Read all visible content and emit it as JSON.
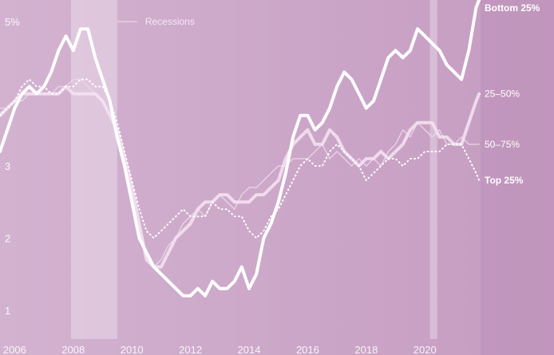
{
  "chart_data": {
    "type": "line",
    "title": "",
    "xlabel": "",
    "ylabel": "",
    "xlim": [
      2005.5,
      2021.9
    ],
    "ylim": [
      0.6,
      5.3
    ],
    "x_ticks": [
      {
        "value": 2006,
        "label": "2006"
      },
      {
        "value": 2008,
        "label": "2008"
      },
      {
        "value": 2010,
        "label": "2010"
      },
      {
        "value": 2012,
        "label": "2012"
      },
      {
        "value": 2014,
        "label": "2014"
      },
      {
        "value": 2016,
        "label": "2016"
      },
      {
        "value": 2018,
        "label": "2018"
      },
      {
        "value": 2020,
        "label": "2020"
      }
    ],
    "y_ticks": [
      {
        "value": 1,
        "label": "1"
      },
      {
        "value": 2,
        "label": "2"
      },
      {
        "value": 3,
        "label": "3"
      },
      {
        "value": 5,
        "label": "5%"
      }
    ],
    "grid": false,
    "recessions": {
      "label": "Recessions",
      "periods": [
        [
          2007.92,
          2009.5
        ],
        [
          2020.17,
          2020.42
        ]
      ]
    },
    "series": [
      {
        "name": "Bottom 25%",
        "x": [
          2005.5,
          2005.75,
          2006.0,
          2006.25,
          2006.5,
          2006.75,
          2007.0,
          2007.25,
          2007.5,
          2007.75,
          2008.0,
          2008.25,
          2008.5,
          2008.75,
          2009.0,
          2009.25,
          2009.5,
          2009.75,
          2010.0,
          2010.25,
          2010.5,
          2010.75,
          2011.0,
          2011.25,
          2011.5,
          2011.75,
          2012.0,
          2012.25,
          2012.5,
          2012.75,
          2013.0,
          2013.25,
          2013.5,
          2013.75,
          2014.0,
          2014.25,
          2014.5,
          2014.75,
          2015.0,
          2015.25,
          2015.5,
          2015.75,
          2016.0,
          2016.25,
          2016.5,
          2016.75,
          2017.0,
          2017.25,
          2017.5,
          2017.75,
          2018.0,
          2018.25,
          2018.5,
          2018.75,
          2019.0,
          2019.25,
          2019.5,
          2019.75,
          2020.0,
          2020.25,
          2020.5,
          2020.75,
          2021.0,
          2021.25,
          2021.5,
          2021.75,
          2021.85
        ],
        "values": [
          3.2,
          3.5,
          3.8,
          4.0,
          4.1,
          4.0,
          4.1,
          4.3,
          4.6,
          4.8,
          4.6,
          4.9,
          4.9,
          4.5,
          4.2,
          3.9,
          3.4,
          3.0,
          2.5,
          2.0,
          1.8,
          1.6,
          1.5,
          1.4,
          1.3,
          1.2,
          1.2,
          1.3,
          1.2,
          1.4,
          1.3,
          1.3,
          1.4,
          1.6,
          1.3,
          1.5,
          2.0,
          2.2,
          2.5,
          2.9,
          3.4,
          3.7,
          3.7,
          3.5,
          3.6,
          3.8,
          4.1,
          4.3,
          4.2,
          4.0,
          3.8,
          3.9,
          4.2,
          4.5,
          4.6,
          4.5,
          4.6,
          4.9,
          4.8,
          4.7,
          4.6,
          4.4,
          4.3,
          4.2,
          4.6,
          5.2,
          5.3
        ]
      },
      {
        "name": "25–50%",
        "x": [
          2005.5,
          2005.75,
          2006.0,
          2006.25,
          2006.5,
          2006.75,
          2007.0,
          2007.25,
          2007.5,
          2007.75,
          2008.0,
          2008.25,
          2008.5,
          2008.75,
          2009.0,
          2009.25,
          2009.5,
          2009.75,
          2010.0,
          2010.25,
          2010.5,
          2010.75,
          2011.0,
          2011.25,
          2011.5,
          2011.75,
          2012.0,
          2012.25,
          2012.5,
          2012.75,
          2013.0,
          2013.25,
          2013.5,
          2013.75,
          2014.0,
          2014.25,
          2014.5,
          2014.75,
          2015.0,
          2015.25,
          2015.5,
          2015.75,
          2016.0,
          2016.25,
          2016.5,
          2016.75,
          2017.0,
          2017.25,
          2017.5,
          2017.75,
          2018.0,
          2018.25,
          2018.5,
          2018.75,
          2019.0,
          2019.25,
          2019.5,
          2019.75,
          2020.0,
          2020.25,
          2020.5,
          2020.75,
          2021.0,
          2021.25,
          2021.5,
          2021.75,
          2021.85
        ],
        "values": [
          3.7,
          3.8,
          3.9,
          4.0,
          4.0,
          4.0,
          4.0,
          4.0,
          4.0,
          4.1,
          4.0,
          4.0,
          4.0,
          4.0,
          3.9,
          3.7,
          3.5,
          3.1,
          2.7,
          2.2,
          1.7,
          1.6,
          1.6,
          1.8,
          2.0,
          2.1,
          2.2,
          2.4,
          2.5,
          2.5,
          2.6,
          2.6,
          2.5,
          2.5,
          2.5,
          2.6,
          2.6,
          2.7,
          2.8,
          3.1,
          3.3,
          3.4,
          3.5,
          3.3,
          3.3,
          3.5,
          3.4,
          3.2,
          3.1,
          3.0,
          3.1,
          3.1,
          3.2,
          3.1,
          3.2,
          3.3,
          3.5,
          3.6,
          3.6,
          3.6,
          3.4,
          3.4,
          3.3,
          3.3,
          3.6,
          3.9,
          4.0
        ]
      },
      {
        "name": "50–75%",
        "x": [
          2005.5,
          2005.75,
          2006.0,
          2006.25,
          2006.5,
          2006.75,
          2007.0,
          2007.25,
          2007.5,
          2007.75,
          2008.0,
          2008.25,
          2008.5,
          2008.75,
          2009.0,
          2009.25,
          2009.5,
          2009.75,
          2010.0,
          2010.25,
          2010.5,
          2010.75,
          2011.0,
          2011.25,
          2011.5,
          2011.75,
          2012.0,
          2012.25,
          2012.5,
          2012.75,
          2013.0,
          2013.25,
          2013.5,
          2013.75,
          2014.0,
          2014.25,
          2014.5,
          2014.75,
          2015.0,
          2015.25,
          2015.5,
          2015.75,
          2016.0,
          2016.25,
          2016.5,
          2016.75,
          2017.0,
          2017.25,
          2017.5,
          2017.75,
          2018.0,
          2018.25,
          2018.5,
          2018.75,
          2019.0,
          2019.25,
          2019.5,
          2019.75,
          2020.0,
          2020.25,
          2020.5,
          2020.75,
          2021.0,
          2021.25,
          2021.5,
          2021.75,
          2021.85
        ],
        "values": [
          3.8,
          3.8,
          3.9,
          3.9,
          4.0,
          4.0,
          4.0,
          4.0,
          4.1,
          4.1,
          4.2,
          4.2,
          4.1,
          4.0,
          3.9,
          3.7,
          3.4,
          3.0,
          2.6,
          2.1,
          1.8,
          1.6,
          1.7,
          1.9,
          2.0,
          2.2,
          2.3,
          2.4,
          2.3,
          2.5,
          2.6,
          2.5,
          2.4,
          2.6,
          2.7,
          2.7,
          2.8,
          2.9,
          3.0,
          3.0,
          3.1,
          3.1,
          3.1,
          3.2,
          3.3,
          3.1,
          3.2,
          3.1,
          3.0,
          3.1,
          3.0,
          3.1,
          3.0,
          3.2,
          3.3,
          3.5,
          3.4,
          3.6,
          3.5,
          3.4,
          3.5,
          3.3,
          3.3,
          3.4,
          3.3,
          3.3,
          3.3
        ]
      },
      {
        "name": "Top 25%",
        "x": [
          2005.5,
          2005.75,
          2006.0,
          2006.25,
          2006.5,
          2006.75,
          2007.0,
          2007.25,
          2007.5,
          2007.75,
          2008.0,
          2008.25,
          2008.5,
          2008.75,
          2009.0,
          2009.25,
          2009.5,
          2009.75,
          2010.0,
          2010.25,
          2010.5,
          2010.75,
          2011.0,
          2011.25,
          2011.5,
          2011.75,
          2012.0,
          2012.25,
          2012.5,
          2012.75,
          2013.0,
          2013.25,
          2013.5,
          2013.75,
          2014.0,
          2014.25,
          2014.5,
          2014.75,
          2015.0,
          2015.25,
          2015.5,
          2015.75,
          2016.0,
          2016.25,
          2016.5,
          2016.75,
          2017.0,
          2017.25,
          2017.5,
          2017.75,
          2018.0,
          2018.25,
          2018.5,
          2018.75,
          2019.0,
          2019.25,
          2019.5,
          2019.75,
          2020.0,
          2020.25,
          2020.5,
          2020.75,
          2021.0,
          2021.25,
          2021.5,
          2021.75,
          2021.85
        ],
        "values": [
          3.7,
          3.8,
          3.9,
          4.1,
          4.2,
          4.1,
          4.1,
          4.0,
          4.0,
          4.1,
          4.1,
          4.2,
          4.2,
          4.1,
          4.1,
          3.9,
          3.6,
          3.2,
          2.8,
          2.4,
          2.1,
          2.0,
          2.1,
          2.2,
          2.3,
          2.4,
          2.3,
          2.3,
          2.3,
          2.5,
          2.4,
          2.4,
          2.3,
          2.3,
          2.1,
          2.0,
          2.1,
          2.3,
          2.4,
          2.6,
          2.8,
          3.0,
          3.1,
          3.0,
          3.0,
          3.2,
          3.3,
          3.2,
          3.1,
          3.0,
          2.8,
          2.9,
          3.0,
          3.1,
          3.1,
          3.0,
          3.1,
          3.1,
          3.2,
          3.2,
          3.2,
          3.3,
          3.3,
          3.3,
          3.1,
          2.9,
          2.8
        ]
      }
    ],
    "line_styles": [
      {
        "color": "#ffffff",
        "width": 4,
        "dash": "",
        "opacity": 1
      },
      {
        "color": "#f4e1f1",
        "width": 4,
        "dash": "",
        "opacity": 0.9
      },
      {
        "color": "#ecd7e9",
        "width": 1.4,
        "dash": "",
        "opacity": 0.9
      },
      {
        "color": "#ffffff",
        "width": 2,
        "dash": "1 4",
        "opacity": 1
      }
    ],
    "label_styles": [
      {
        "bold": true
      },
      {
        "bold": false
      },
      {
        "bold": false
      },
      {
        "bold": true
      }
    ]
  }
}
